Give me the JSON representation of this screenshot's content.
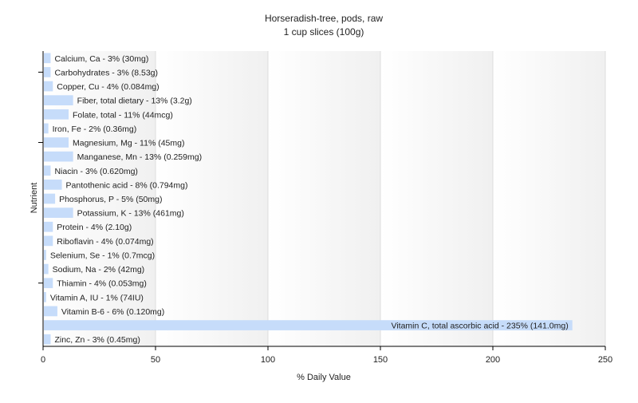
{
  "chart_data": {
    "type": "bar",
    "orientation": "horizontal",
    "title": "Horseradish-tree, pods, raw",
    "subtitle": "1 cup slices (100g)",
    "xlabel": "% Daily Value",
    "ylabel": "Nutrient",
    "xlim": [
      0,
      250
    ],
    "xticks": [
      0,
      50,
      100,
      150,
      200,
      250
    ],
    "grid": "vertical",
    "bar_color": "#c6dcfa",
    "categories": [
      "Calcium, Ca",
      "Carbohydrates",
      "Copper, Cu",
      "Fiber, total dietary",
      "Folate, total",
      "Iron, Fe",
      "Magnesium, Mg",
      "Manganese, Mn",
      "Niacin",
      "Pantothenic acid",
      "Phosphorus, P",
      "Potassium, K",
      "Protein",
      "Riboflavin",
      "Selenium, Se",
      "Sodium, Na",
      "Thiamin",
      "Vitamin A, IU",
      "Vitamin B-6",
      "Vitamin C, total ascorbic acid",
      "Zinc, Zn"
    ],
    "values": [
      3,
      3,
      4,
      13,
      11,
      2,
      11,
      13,
      3,
      8,
      5,
      13,
      4,
      4,
      1,
      2,
      4,
      1,
      6,
      235,
      3
    ],
    "labels": [
      "Calcium, Ca - 3% (30mg)",
      "Carbohydrates - 3% (8.53g)",
      "Copper, Cu - 4% (0.084mg)",
      "Fiber, total dietary - 13% (3.2g)",
      "Folate, total - 11% (44mcg)",
      "Iron, Fe - 2% (0.36mg)",
      "Magnesium, Mg - 11% (45mg)",
      "Manganese, Mn - 13% (0.259mg)",
      "Niacin - 3% (0.620mg)",
      "Pantothenic acid - 8% (0.794mg)",
      "Phosphorus, P - 5% (50mg)",
      "Potassium, K - 13% (461mg)",
      "Protein - 4% (2.10g)",
      "Riboflavin - 4% (0.074mg)",
      "Selenium, Se - 1% (0.7mcg)",
      "Sodium, Na - 2% (42mg)",
      "Thiamin - 4% (0.053mg)",
      "Vitamin A, IU - 1% (74IU)",
      "Vitamin B-6 - 6% (0.120mg)",
      "Vitamin C, total ascorbic acid - 235% (141.0mg)",
      "Zinc, Zn - 3% (0.45mg)"
    ]
  }
}
